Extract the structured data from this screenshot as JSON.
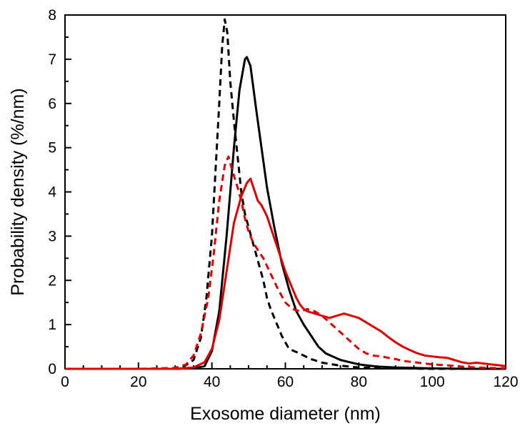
{
  "chart_data": {
    "type": "line",
    "title": "",
    "xlabel": "Exosome diameter (nm)",
    "ylabel": "Probability density (%/nm)",
    "xlim": [
      0,
      120
    ],
    "ylim": [
      0,
      8
    ],
    "x_ticks": [
      0,
      20,
      40,
      60,
      80,
      100,
      120
    ],
    "y_ticks": [
      0,
      1,
      2,
      3,
      4,
      5,
      6,
      7,
      8
    ],
    "grid": false,
    "legend": "none",
    "series": [
      {
        "color": "#000000",
        "dash": "solid",
        "points": [
          [
            0,
            0
          ],
          [
            20,
            0
          ],
          [
            30,
            0
          ],
          [
            35,
            0.01
          ],
          [
            38,
            0.06
          ],
          [
            40,
            0.4
          ],
          [
            42,
            1.3
          ],
          [
            44,
            3.0
          ],
          [
            46,
            5.0
          ],
          [
            47.5,
            6.3
          ],
          [
            49,
            7.0
          ],
          [
            49.5,
            7.05
          ],
          [
            50.5,
            6.85
          ],
          [
            52,
            5.9
          ],
          [
            53.5,
            5.0
          ],
          [
            55,
            4.1
          ],
          [
            57,
            3.2
          ],
          [
            59,
            2.4
          ],
          [
            61,
            1.8
          ],
          [
            63,
            1.3
          ],
          [
            65,
            1.0
          ],
          [
            67,
            0.75
          ],
          [
            69,
            0.5
          ],
          [
            71,
            0.35
          ],
          [
            75,
            0.2
          ],
          [
            80,
            0.1
          ],
          [
            85,
            0.05
          ],
          [
            90,
            0.03
          ],
          [
            100,
            0.01
          ],
          [
            110,
            0
          ],
          [
            120,
            0
          ]
        ]
      },
      {
        "color": "#000000",
        "dash": "dashed",
        "points": [
          [
            0,
            0
          ],
          [
            20,
            0
          ],
          [
            28,
            0
          ],
          [
            32,
            0.03
          ],
          [
            35,
            0.2
          ],
          [
            37,
            0.7
          ],
          [
            38.5,
            1.6
          ],
          [
            40,
            3.0
          ],
          [
            41,
            4.5
          ],
          [
            42,
            6.0
          ],
          [
            42.8,
            7.3
          ],
          [
            43.5,
            7.9
          ],
          [
            44.2,
            7.6
          ],
          [
            45,
            6.5
          ],
          [
            46,
            5.6
          ],
          [
            47,
            4.8
          ],
          [
            48,
            4.0
          ],
          [
            49,
            3.5
          ],
          [
            50,
            3.2
          ],
          [
            51,
            2.9
          ],
          [
            52,
            2.6
          ],
          [
            53,
            2.3
          ],
          [
            54,
            2.0
          ],
          [
            55,
            1.6
          ],
          [
            56,
            1.35
          ],
          [
            57,
            1.15
          ],
          [
            58,
            0.95
          ],
          [
            59,
            0.75
          ],
          [
            60,
            0.6
          ],
          [
            61,
            0.45
          ],
          [
            63,
            0.38
          ],
          [
            65,
            0.3
          ],
          [
            67,
            0.22
          ],
          [
            70,
            0.14
          ],
          [
            75,
            0.07
          ],
          [
            80,
            0.03
          ],
          [
            90,
            0.01
          ],
          [
            100,
            0
          ],
          [
            120,
            0
          ]
        ]
      },
      {
        "color": "#e00000",
        "dash": "solid",
        "points": [
          [
            0,
            0
          ],
          [
            20,
            0
          ],
          [
            30,
            0
          ],
          [
            35,
            0.03
          ],
          [
            38,
            0.15
          ],
          [
            40,
            0.45
          ],
          [
            42,
            1.1
          ],
          [
            44,
            2.2
          ],
          [
            46,
            3.3
          ],
          [
            48,
            3.9
          ],
          [
            49.5,
            4.2
          ],
          [
            50.5,
            4.3
          ],
          [
            51.5,
            4.05
          ],
          [
            52.5,
            3.8
          ],
          [
            53.5,
            3.7
          ],
          [
            55,
            3.45
          ],
          [
            56,
            3.2
          ],
          [
            57,
            2.95
          ],
          [
            58,
            2.7
          ],
          [
            59,
            2.45
          ],
          [
            60,
            2.2
          ],
          [
            61,
            2.0
          ],
          [
            62,
            1.8
          ],
          [
            63,
            1.6
          ],
          [
            64,
            1.45
          ],
          [
            65,
            1.35
          ],
          [
            66,
            1.3
          ],
          [
            68,
            1.25
          ],
          [
            70,
            1.2
          ],
          [
            72,
            1.15
          ],
          [
            74,
            1.2
          ],
          [
            76,
            1.25
          ],
          [
            78,
            1.2
          ],
          [
            80,
            1.15
          ],
          [
            82,
            1.05
          ],
          [
            84,
            0.95
          ],
          [
            86,
            0.85
          ],
          [
            88,
            0.72
          ],
          [
            90,
            0.6
          ],
          [
            92,
            0.5
          ],
          [
            94,
            0.42
          ],
          [
            96,
            0.35
          ],
          [
            98,
            0.3
          ],
          [
            100,
            0.28
          ],
          [
            102,
            0.26
          ],
          [
            104,
            0.25
          ],
          [
            106,
            0.2
          ],
          [
            108,
            0.15
          ],
          [
            110,
            0.12
          ],
          [
            112,
            0.14
          ],
          [
            114,
            0.12
          ],
          [
            116,
            0.1
          ],
          [
            118,
            0.08
          ],
          [
            120,
            0.06
          ]
        ]
      },
      {
        "color": "#e00000",
        "dash": "dashed",
        "points": [
          [
            0,
            0
          ],
          [
            20,
            0
          ],
          [
            30,
            0.02
          ],
          [
            33,
            0.1
          ],
          [
            35,
            0.3
          ],
          [
            37,
            0.8
          ],
          [
            39,
            1.6
          ],
          [
            40.5,
            2.6
          ],
          [
            42,
            3.8
          ],
          [
            43.5,
            4.6
          ],
          [
            44.5,
            4.8
          ],
          [
            45.5,
            4.5
          ],
          [
            47,
            4.1
          ],
          [
            48,
            3.8
          ],
          [
            49,
            3.4
          ],
          [
            50,
            3.1
          ],
          [
            51,
            2.9
          ],
          [
            52,
            2.75
          ],
          [
            54,
            2.5
          ],
          [
            56,
            2.15
          ],
          [
            58,
            1.8
          ],
          [
            60,
            1.5
          ],
          [
            62,
            1.35
          ],
          [
            64,
            1.3
          ],
          [
            66,
            1.35
          ],
          [
            68,
            1.3
          ],
          [
            70,
            1.2
          ],
          [
            72,
            1.05
          ],
          [
            74,
            0.9
          ],
          [
            76,
            0.75
          ],
          [
            78,
            0.6
          ],
          [
            80,
            0.45
          ],
          [
            82,
            0.35
          ],
          [
            84,
            0.3
          ],
          [
            86,
            0.28
          ],
          [
            88,
            0.25
          ],
          [
            90,
            0.22
          ],
          [
            92,
            0.18
          ],
          [
            94,
            0.16
          ],
          [
            96,
            0.14
          ],
          [
            98,
            0.12
          ],
          [
            100,
            0.1
          ],
          [
            104,
            0.08
          ],
          [
            108,
            0.05
          ],
          [
            112,
            0.03
          ],
          [
            116,
            0.02
          ],
          [
            120,
            0.01
          ]
        ]
      }
    ]
  }
}
